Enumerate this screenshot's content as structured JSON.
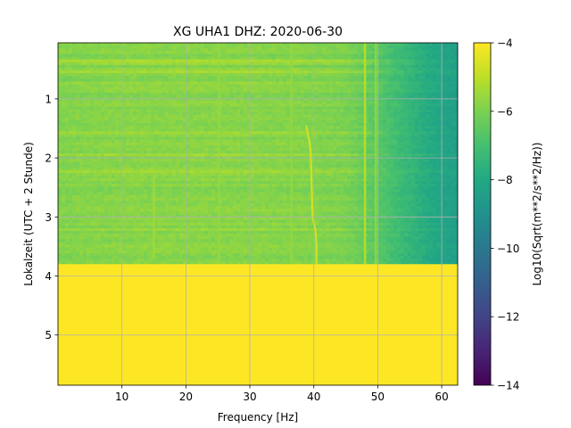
{
  "chart_data": {
    "type": "heatmap",
    "title": "XG UHA1  DHZ: 2020-06-30",
    "xlabel": "Frequency [Hz]",
    "ylabel": "Lokalzeit (UTC + 2 Stunde)",
    "xlim": [
      0,
      62.5
    ],
    "ylim": [
      5.85,
      0.05
    ],
    "y_inverted": true,
    "xticks": [
      "10",
      "20",
      "30",
      "40",
      "50",
      "60"
    ],
    "xtick_values": [
      10,
      20,
      30,
      40,
      50,
      60
    ],
    "yticks": [
      "1",
      "2",
      "3",
      "4",
      "5"
    ],
    "ytick_values": [
      1,
      2,
      3,
      4,
      5
    ],
    "grid": true,
    "colorbar": {
      "label": "Log10(Sqrt(m**2/s**2/Hz))",
      "colormap": "viridis",
      "range": [
        -14,
        -4
      ],
      "ticks": [
        "−4",
        "−6",
        "−8",
        "−10",
        "−12",
        "−14"
      ],
      "tick_values": [
        -4,
        -6,
        -8,
        -10,
        -12,
        -14
      ]
    },
    "data_end_time": 3.8,
    "fill_value_after_end": -4,
    "background_level_profile": {
      "frequency": [
        0,
        10,
        20,
        30,
        40,
        45,
        50,
        54,
        58,
        62.5
      ],
      "value": [
        -5.9,
        -5.8,
        -5.8,
        -5.8,
        -5.9,
        -6.0,
        -6.6,
        -7.3,
        -7.9,
        -8.4
      ]
    },
    "spectral_lines": [
      {
        "frequency": 48,
        "start": 0.05,
        "end": 3.8,
        "value": -5.0
      },
      {
        "frequency": 49.7,
        "start": 0.05,
        "end": 3.8,
        "value": -5.6
      },
      {
        "frequency": 15,
        "start": 2.3,
        "end": 3.7,
        "value": -5.4
      },
      {
        "frequency": 25.2,
        "start": 0.05,
        "end": 3.8,
        "value": -5.6
      },
      {
        "frequency": 36.5,
        "start": 0.05,
        "end": 3.8,
        "value": -5.6
      }
    ],
    "drifting_signal": {
      "time": [
        1.45,
        1.7,
        1.9,
        2.2,
        2.6,
        3.0,
        3.25,
        3.5,
        3.8
      ],
      "frequency": [
        38.8,
        39.3,
        39.5,
        39.6,
        39.7,
        39.8,
        40.3,
        40.4,
        40.4
      ],
      "value": -4.7
    }
  }
}
